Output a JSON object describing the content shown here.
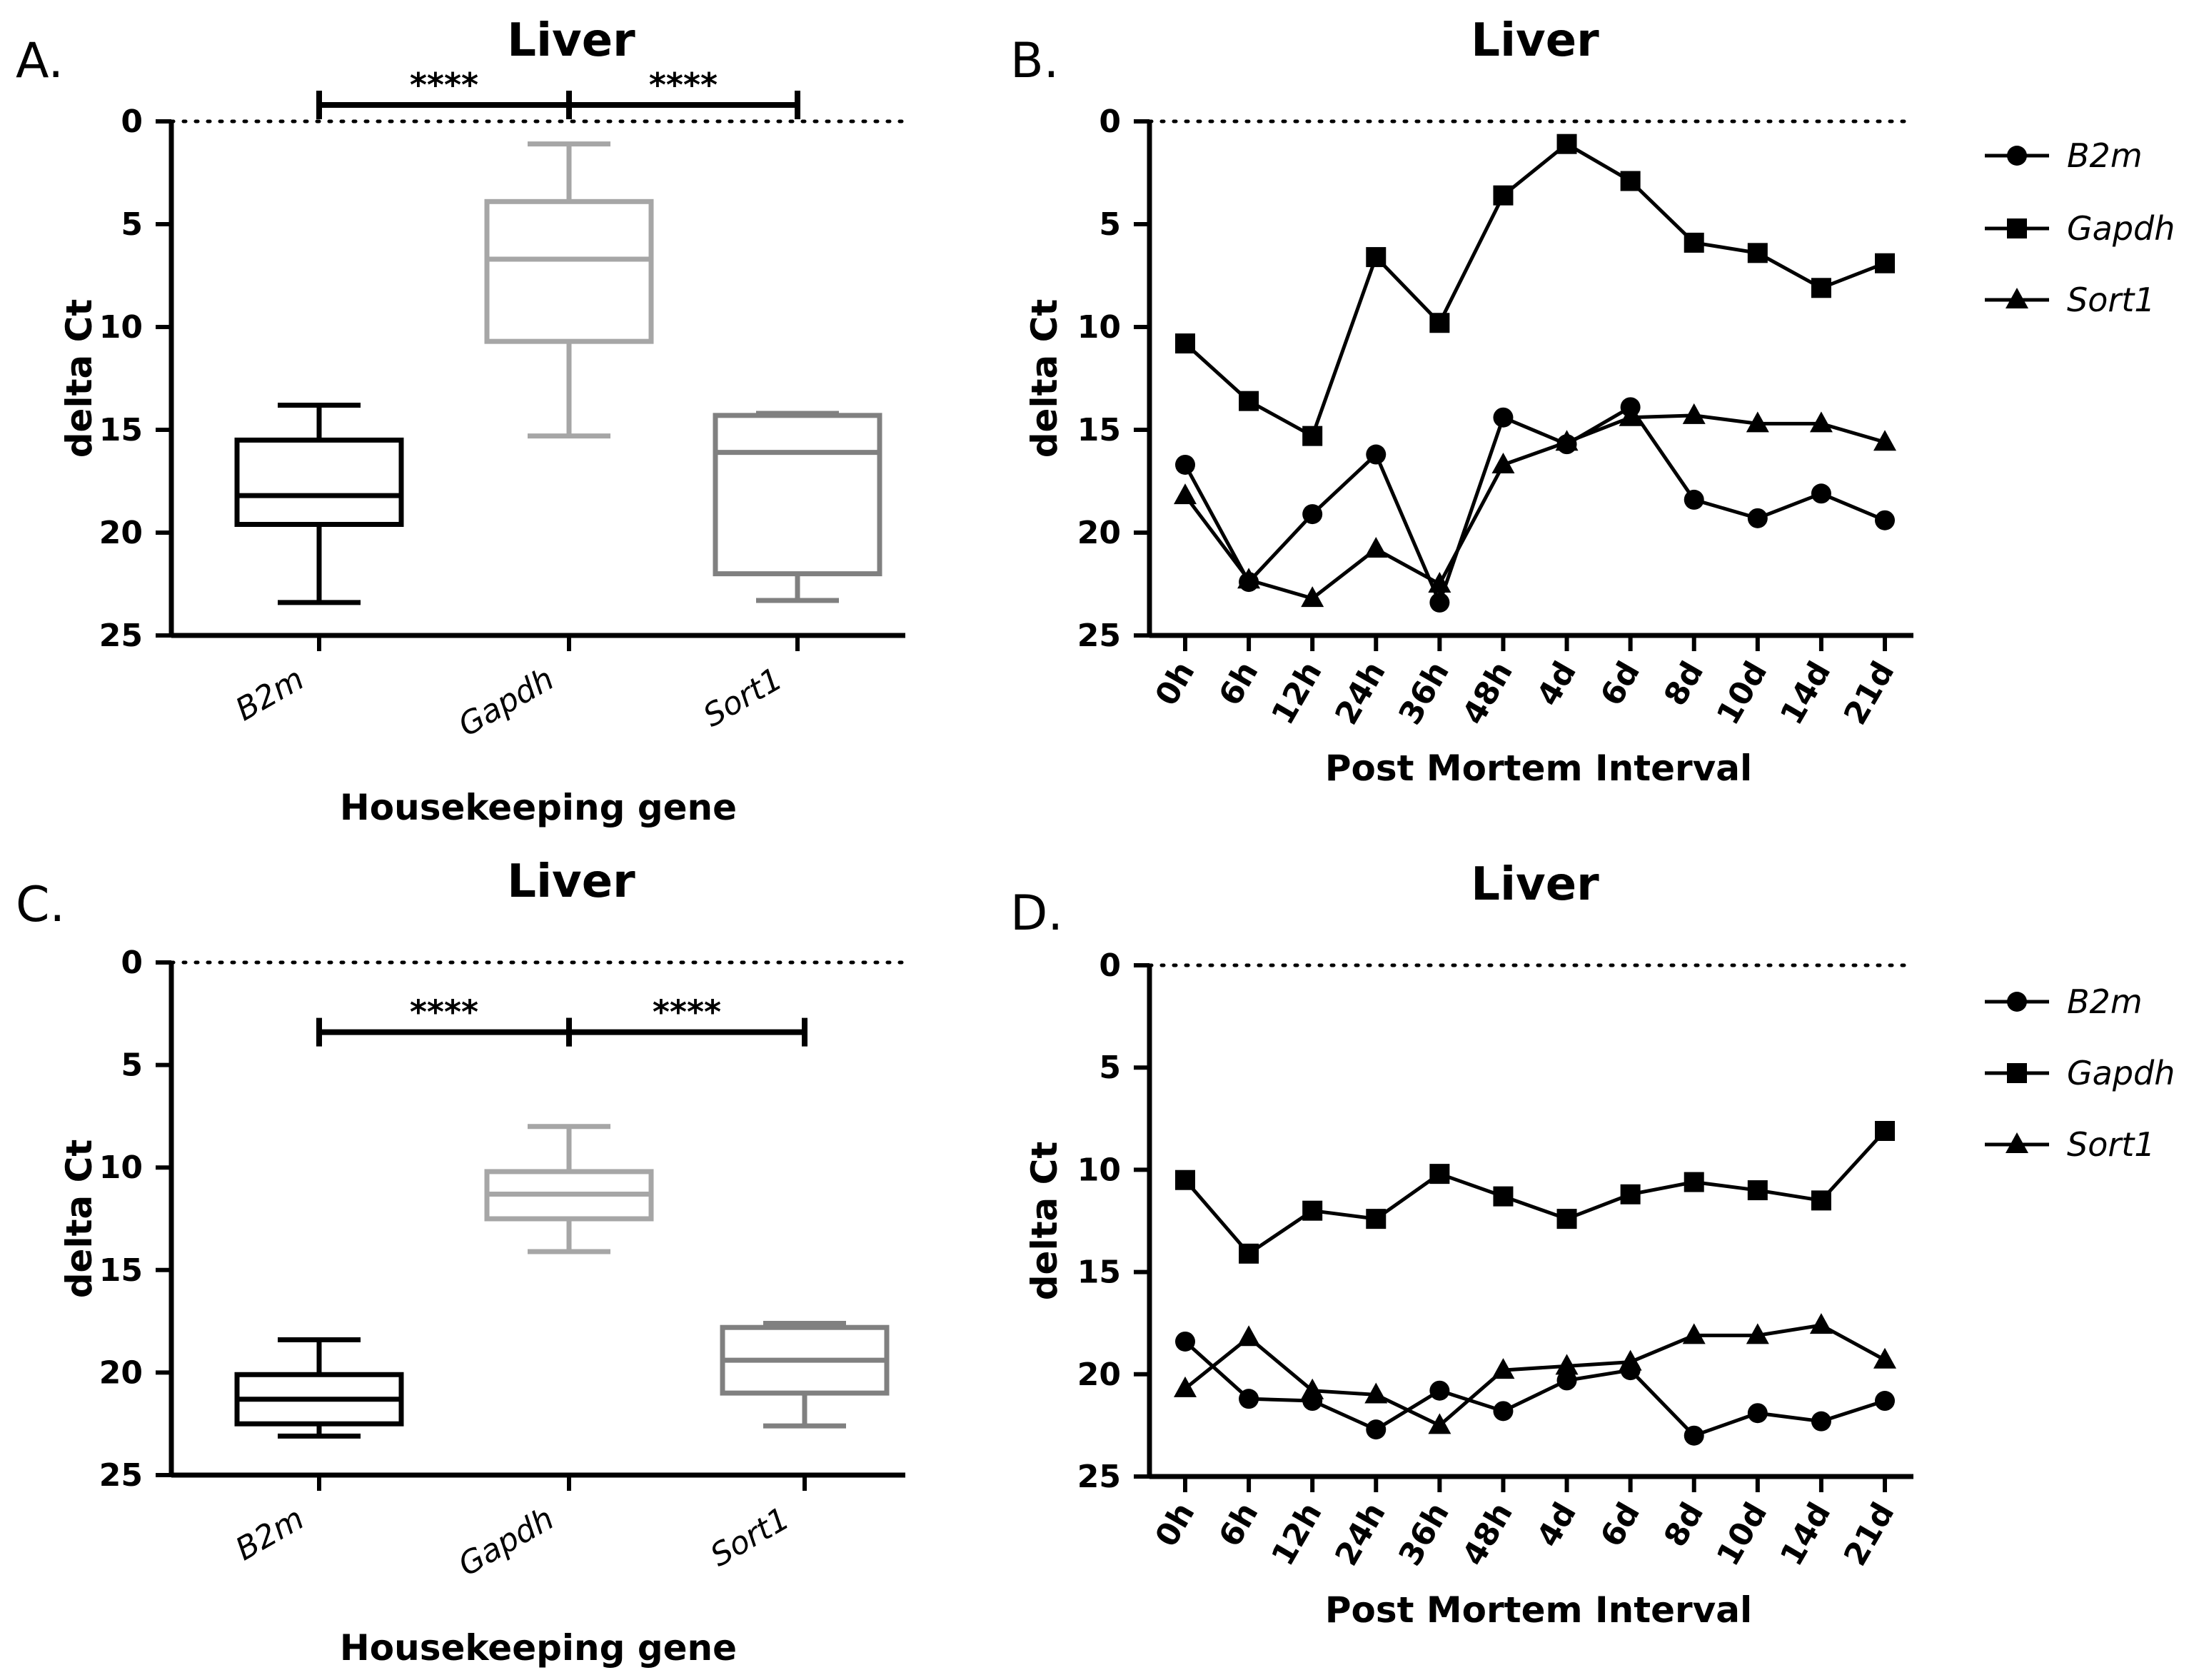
{
  "chart_data": [
    {
      "panel": "A.",
      "type": "box",
      "title": "Liver",
      "xlabel": "Housekeeping gene",
      "ylabel": "delta Ct",
      "ylim": [
        0,
        25
      ],
      "y_inverted": true,
      "yticks": [
        "0",
        "5",
        "10",
        "15",
        "20",
        "25"
      ],
      "reference_line": 0,
      "categories": [
        "B2m",
        "Gapdh",
        "Sort1"
      ],
      "colors": [
        "#000000",
        "#a6a6a6",
        "#808080"
      ],
      "boxes": [
        {
          "name": "B2m",
          "min": 13.8,
          "q1": 15.5,
          "median": 18.2,
          "q3": 19.6,
          "max": 23.4
        },
        {
          "name": "Gapdh",
          "min": 1.1,
          "q1": 3.9,
          "median": 6.7,
          "q3": 10.7,
          "max": 15.3
        },
        {
          "name": "Sort1",
          "min": 14.2,
          "q1": 14.3,
          "median": 16.1,
          "q3": 22.0,
          "max": 23.3
        }
      ],
      "significance": [
        {
          "from": "B2m",
          "to": "Gapdh",
          "label": "****",
          "y": -0.8
        },
        {
          "from": "Gapdh",
          "to": "Sort1",
          "label": "****",
          "y": -0.8
        }
      ]
    },
    {
      "panel": "B.",
      "type": "line",
      "title": "Liver",
      "xlabel": "Post Mortem Interval",
      "ylabel": "delta Ct",
      "ylim": [
        0,
        25
      ],
      "y_inverted": true,
      "yticks": [
        "0",
        "5",
        "10",
        "15",
        "20",
        "25"
      ],
      "reference_line": 0,
      "categories": [
        "0h",
        "6h",
        "12h",
        "24h",
        "36h",
        "48h",
        "4d",
        "6d",
        "8d",
        "10d",
        "14d",
        "21d"
      ],
      "series": [
        {
          "name": "B2m",
          "marker": "circle",
          "values": [
            16.7,
            22.4,
            19.1,
            16.2,
            23.4,
            14.4,
            15.7,
            13.9,
            18.4,
            19.3,
            18.1,
            19.4
          ]
        },
        {
          "name": "Gapdh",
          "marker": "square",
          "values": [
            10.8,
            13.6,
            15.3,
            6.6,
            9.8,
            3.6,
            1.1,
            2.9,
            5.9,
            6.4,
            8.1,
            6.9
          ]
        },
        {
          "name": "Sort1",
          "marker": "triangle",
          "values": [
            18.2,
            22.3,
            23.2,
            20.8,
            22.5,
            16.7,
            15.6,
            14.4,
            14.3,
            14.7,
            14.7,
            15.6
          ]
        }
      ]
    },
    {
      "panel": "C.",
      "type": "box",
      "title": "Liver",
      "xlabel": "Housekeeping gene",
      "ylabel": "delta Ct",
      "ylim": [
        0,
        25
      ],
      "y_inverted": true,
      "yticks": [
        "0",
        "5",
        "10",
        "15",
        "20",
        "25"
      ],
      "reference_line": 0,
      "categories": [
        "B2m",
        "Gapdh",
        "Sort1"
      ],
      "colors": [
        "#000000",
        "#a6a6a6",
        "#808080"
      ],
      "boxes": [
        {
          "name": "B2m",
          "min": 18.4,
          "q1": 20.1,
          "median": 21.3,
          "q3": 22.5,
          "max": 23.1
        },
        {
          "name": "Gapdh",
          "min": 8.0,
          "q1": 10.2,
          "median": 11.3,
          "q3": 12.5,
          "max": 14.1
        },
        {
          "name": "Sort1",
          "min": 17.6,
          "q1": 17.8,
          "median": 19.4,
          "q3": 21.0,
          "max": 22.6
        }
      ],
      "significance": [
        {
          "from": "B2m",
          "to": "Gapdh",
          "label": "****",
          "y": 3.4
        },
        {
          "from": "Gapdh",
          "to": "Sort1",
          "label": "****",
          "y": 3.4
        }
      ]
    },
    {
      "panel": "D.",
      "type": "line",
      "title": "Liver",
      "xlabel": "Post Mortem Interval",
      "ylabel": "delta Ct",
      "ylim": [
        0,
        25
      ],
      "y_inverted": true,
      "yticks": [
        "0",
        "5",
        "10",
        "15",
        "20",
        "25"
      ],
      "reference_line": 0,
      "categories": [
        "0h",
        "6h",
        "12h",
        "24h",
        "36h",
        "48h",
        "4d",
        "6d",
        "8d",
        "10d",
        "14d",
        "21d"
      ],
      "series": [
        {
          "name": "B2m",
          "marker": "circle",
          "values": [
            18.4,
            21.2,
            21.3,
            22.7,
            20.8,
            21.8,
            20.3,
            19.8,
            23.0,
            21.9,
            22.3,
            21.3
          ]
        },
        {
          "name": "Gapdh",
          "marker": "square",
          "values": [
            10.5,
            14.1,
            12.0,
            12.4,
            10.2,
            11.3,
            12.4,
            11.2,
            10.6,
            11.0,
            11.5,
            8.1
          ]
        },
        {
          "name": "Sort1",
          "marker": "triangle",
          "values": [
            20.7,
            18.2,
            20.8,
            21.0,
            22.5,
            19.8,
            19.6,
            19.4,
            18.1,
            18.1,
            17.6,
            19.3
          ]
        }
      ]
    }
  ]
}
